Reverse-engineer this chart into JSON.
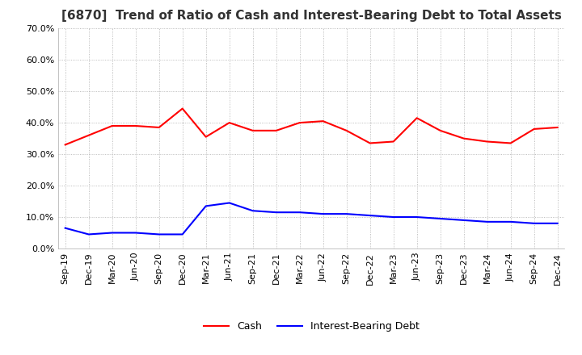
{
  "title": "[6870]  Trend of Ratio of Cash and Interest-Bearing Debt to Total Assets",
  "x_labels": [
    "Sep-19",
    "Dec-19",
    "Mar-20",
    "Jun-20",
    "Sep-20",
    "Dec-20",
    "Mar-21",
    "Jun-21",
    "Sep-21",
    "Dec-21",
    "Mar-22",
    "Jun-22",
    "Sep-22",
    "Dec-22",
    "Mar-23",
    "Jun-23",
    "Sep-23",
    "Dec-23",
    "Mar-24",
    "Jun-24",
    "Sep-24",
    "Dec-24"
  ],
  "cash": [
    33.0,
    36.0,
    39.0,
    39.0,
    38.5,
    44.5,
    35.5,
    40.0,
    37.5,
    37.5,
    40.0,
    40.5,
    37.5,
    33.5,
    34.0,
    41.5,
    37.5,
    35.0,
    34.0,
    33.5,
    38.0,
    38.5
  ],
  "interest_bearing_debt": [
    6.5,
    4.5,
    5.0,
    5.0,
    4.5,
    4.5,
    13.5,
    14.5,
    12.0,
    11.5,
    11.5,
    11.0,
    11.0,
    10.5,
    10.0,
    10.0,
    9.5,
    9.0,
    8.5,
    8.5,
    8.0,
    8.0
  ],
  "cash_color": "#ff0000",
  "debt_color": "#0000ff",
  "ylim": [
    0,
    70
  ],
  "yticks": [
    0,
    10,
    20,
    30,
    40,
    50,
    60,
    70
  ],
  "background_color": "#ffffff",
  "grid_color": "#aaaaaa",
  "title_fontsize": 11,
  "title_color": "#333333"
}
